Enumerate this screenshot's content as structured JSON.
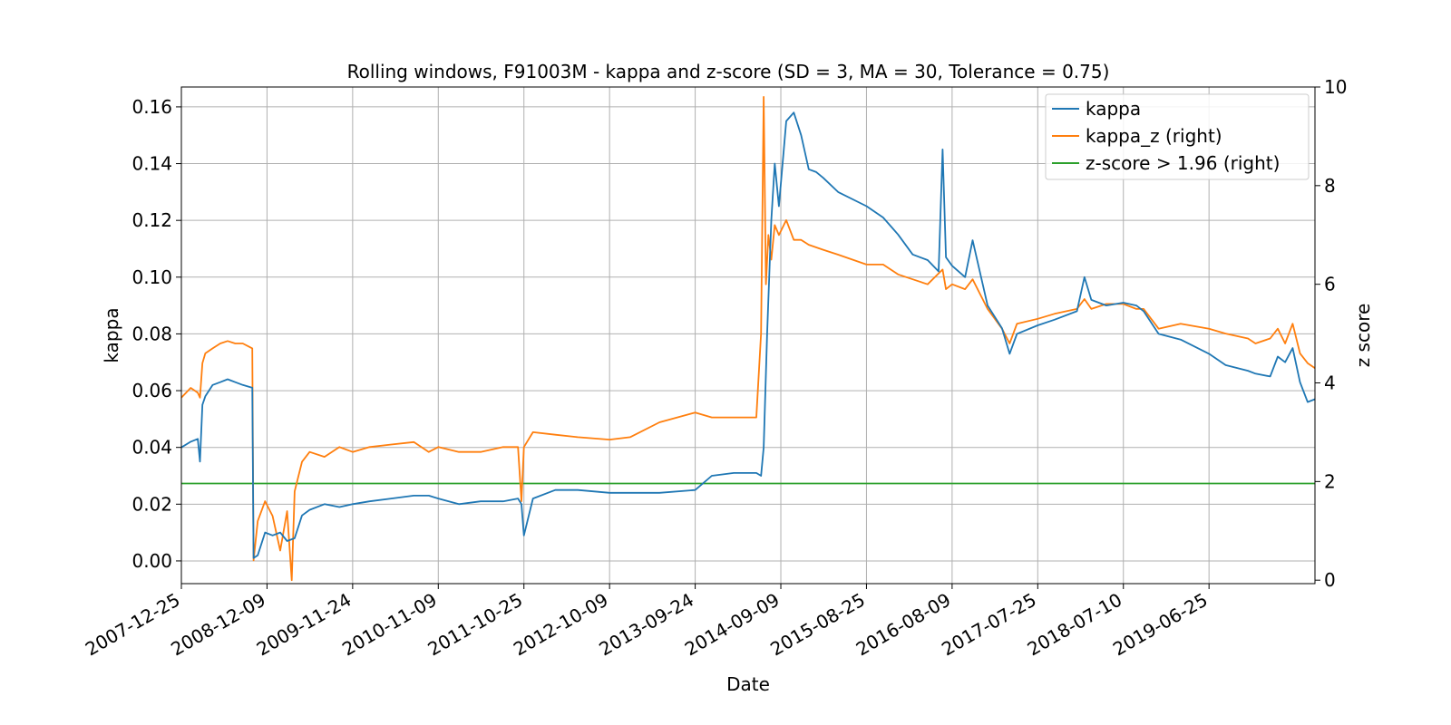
{
  "chart_data": {
    "type": "line",
    "title": "Rolling windows, F91003M - kappa and z-score (SD = 3, MA = 30, Tolerance  = 0.75)",
    "xlabel": "Date",
    "ylabel": "kappa",
    "ylabel_right": "z score",
    "xlim": [
      "2007-12-25",
      "2020-08-31"
    ],
    "ylim": [
      -0.008,
      0.167
    ],
    "ylim_right": [
      -0.07,
      10.0
    ],
    "x_ticks": [
      "2007-12-25",
      "2008-12-09",
      "2009-11-24",
      "2010-11-09",
      "2011-10-25",
      "2012-10-09",
      "2013-09-24",
      "2014-09-09",
      "2015-08-25",
      "2016-08-09",
      "2017-07-25",
      "2018-07-10",
      "2019-06-25"
    ],
    "y_ticks": [
      "0.00",
      "0.02",
      "0.04",
      "0.06",
      "0.08",
      "0.10",
      "0.12",
      "0.14",
      "0.16"
    ],
    "y_ticks_right": [
      "0",
      "2",
      "4",
      "6",
      "8",
      "10"
    ],
    "grid": true,
    "legend_position": "top-right",
    "series": [
      {
        "name": "kappa",
        "axis": "left",
        "color": "#1f77b4",
        "x": [
          "2007-12-25",
          "2008-02-01",
          "2008-03-01",
          "2008-03-10",
          "2008-03-20",
          "2008-04-01",
          "2008-05-01",
          "2008-06-01",
          "2008-07-01",
          "2008-08-01",
          "2008-09-01",
          "2008-10-10",
          "2008-10-15",
          "2008-11-01",
          "2008-12-01",
          "2009-01-01",
          "2009-02-01",
          "2009-03-01",
          "2009-04-01",
          "2009-05-01",
          "2009-06-01",
          "2009-08-01",
          "2009-10-01",
          "2009-11-24",
          "2010-02-01",
          "2010-05-01",
          "2010-08-01",
          "2010-10-01",
          "2010-11-09",
          "2011-02-01",
          "2011-05-01",
          "2011-08-01",
          "2011-10-01",
          "2011-10-15",
          "2011-10-25",
          "2011-12-01",
          "2012-03-01",
          "2012-06-01",
          "2012-10-09",
          "2013-01-01",
          "2013-05-01",
          "2013-09-24",
          "2013-12-01",
          "2014-03-01",
          "2014-06-01",
          "2014-06-20",
          "2014-07-01",
          "2014-07-15",
          "2014-08-01",
          "2014-08-15",
          "2014-09-01",
          "2014-10-01",
          "2014-11-01",
          "2014-12-01",
          "2015-01-01",
          "2015-02-01",
          "2015-03-01",
          "2015-05-01",
          "2015-08-25",
          "2015-11-01",
          "2016-01-01",
          "2016-03-01",
          "2016-05-01",
          "2016-06-15",
          "2016-07-01",
          "2016-07-15",
          "2016-08-09",
          "2016-10-01",
          "2016-11-01",
          "2017-01-01",
          "2017-03-01",
          "2017-04-01",
          "2017-05-01",
          "2017-07-25",
          "2017-10-01",
          "2018-01-01",
          "2018-02-01",
          "2018-03-01",
          "2018-05-01",
          "2018-07-10",
          "2018-09-01",
          "2018-10-01",
          "2018-12-01",
          "2019-03-01",
          "2019-06-25",
          "2019-09-01",
          "2019-12-01",
          "2020-01-01",
          "2020-03-01",
          "2020-04-01",
          "2020-05-01",
          "2020-06-01",
          "2020-07-01",
          "2020-08-01",
          "2020-08-31"
        ],
        "y": [
          0.04,
          0.042,
          0.043,
          0.035,
          0.055,
          0.058,
          0.062,
          0.063,
          0.064,
          0.063,
          0.062,
          0.061,
          0.001,
          0.002,
          0.01,
          0.009,
          0.01,
          0.007,
          0.008,
          0.016,
          0.018,
          0.02,
          0.019,
          0.02,
          0.021,
          0.022,
          0.023,
          0.023,
          0.022,
          0.02,
          0.021,
          0.021,
          0.022,
          0.02,
          0.009,
          0.022,
          0.025,
          0.025,
          0.024,
          0.024,
          0.024,
          0.025,
          0.03,
          0.031,
          0.031,
          0.03,
          0.04,
          0.08,
          0.12,
          0.14,
          0.125,
          0.155,
          0.158,
          0.15,
          0.138,
          0.137,
          0.135,
          0.13,
          0.125,
          0.121,
          0.115,
          0.108,
          0.106,
          0.102,
          0.145,
          0.107,
          0.104,
          0.1,
          0.113,
          0.09,
          0.082,
          0.073,
          0.08,
          0.083,
          0.085,
          0.088,
          0.1,
          0.092,
          0.09,
          0.091,
          0.09,
          0.088,
          0.08,
          0.078,
          0.073,
          0.069,
          0.067,
          0.066,
          0.065,
          0.072,
          0.07,
          0.075,
          0.063,
          0.056,
          0.057
        ]
      },
      {
        "name": "kappa_z (right)",
        "axis": "right",
        "color": "#ff7f0e",
        "x": [
          "2007-12-25",
          "2008-02-01",
          "2008-03-01",
          "2008-03-10",
          "2008-03-20",
          "2008-04-01",
          "2008-05-01",
          "2008-06-01",
          "2008-07-01",
          "2008-08-01",
          "2008-09-01",
          "2008-10-10",
          "2008-10-15",
          "2008-11-01",
          "2008-12-01",
          "2009-01-01",
          "2009-02-01",
          "2009-03-01",
          "2009-03-20",
          "2009-04-01",
          "2009-05-01",
          "2009-06-01",
          "2009-08-01",
          "2009-10-01",
          "2009-11-24",
          "2010-02-01",
          "2010-05-01",
          "2010-08-01",
          "2010-10-01",
          "2010-11-09",
          "2011-02-01",
          "2011-05-01",
          "2011-08-01",
          "2011-10-01",
          "2011-10-15",
          "2011-10-25",
          "2011-12-01",
          "2012-03-01",
          "2012-06-01",
          "2012-10-09",
          "2013-01-01",
          "2013-05-01",
          "2013-09-24",
          "2013-12-01",
          "2014-03-01",
          "2014-06-01",
          "2014-06-20",
          "2014-07-01",
          "2014-07-10",
          "2014-07-20",
          "2014-08-01",
          "2014-08-15",
          "2014-09-01",
          "2014-10-01",
          "2014-11-01",
          "2014-12-01",
          "2015-01-01",
          "2015-03-01",
          "2015-05-01",
          "2015-08-25",
          "2015-11-01",
          "2016-01-01",
          "2016-03-01",
          "2016-05-01",
          "2016-07-01",
          "2016-07-15",
          "2016-08-09",
          "2016-10-01",
          "2016-11-01",
          "2017-01-01",
          "2017-03-01",
          "2017-04-01",
          "2017-05-01",
          "2017-07-25",
          "2017-10-01",
          "2018-01-01",
          "2018-02-01",
          "2018-03-01",
          "2018-05-01",
          "2018-07-10",
          "2018-09-01",
          "2018-10-01",
          "2018-12-01",
          "2019-03-01",
          "2019-06-25",
          "2019-09-01",
          "2019-12-01",
          "2020-01-01",
          "2020-03-01",
          "2020-04-01",
          "2020-05-01",
          "2020-06-01",
          "2020-07-01",
          "2020-08-01",
          "2020-08-31"
        ],
        "y": [
          3.7,
          3.9,
          3.8,
          3.7,
          4.4,
          4.6,
          4.7,
          4.8,
          4.85,
          4.8,
          4.8,
          4.7,
          0.4,
          1.2,
          1.6,
          1.3,
          0.6,
          1.4,
          0.0,
          1.8,
          2.4,
          2.6,
          2.5,
          2.7,
          2.6,
          2.7,
          2.75,
          2.8,
          2.6,
          2.7,
          2.6,
          2.6,
          2.7,
          2.7,
          1.6,
          2.7,
          3.0,
          2.95,
          2.9,
          2.85,
          2.9,
          3.2,
          3.4,
          3.3,
          3.3,
          3.3,
          5.0,
          9.8,
          6.0,
          7.0,
          6.5,
          7.2,
          7.0,
          7.3,
          6.9,
          6.9,
          6.8,
          6.7,
          6.6,
          6.4,
          6.4,
          6.2,
          6.1,
          6.0,
          6.3,
          5.9,
          6.0,
          5.9,
          6.1,
          5.5,
          5.1,
          4.8,
          5.2,
          5.3,
          5.4,
          5.5,
          5.7,
          5.5,
          5.6,
          5.6,
          5.5,
          5.5,
          5.1,
          5.2,
          5.1,
          5.0,
          4.9,
          4.8,
          4.9,
          5.1,
          4.8,
          5.2,
          4.6,
          4.4,
          4.3
        ]
      },
      {
        "name": "z-score > 1.96 (right)",
        "axis": "right",
        "color": "#2ca02c",
        "x": [
          "2007-12-25",
          "2020-08-31"
        ],
        "y": [
          1.96,
          1.96
        ]
      }
    ]
  }
}
